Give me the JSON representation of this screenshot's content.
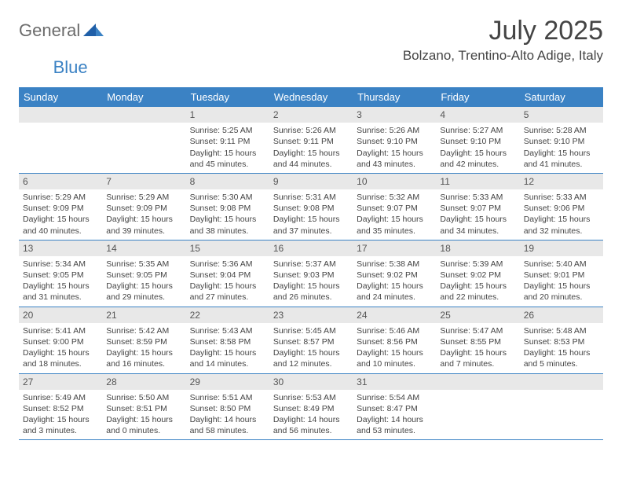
{
  "logo": {
    "part1": "General",
    "part2": "Blue"
  },
  "title": "July 2025",
  "location": "Bolzano, Trentino-Alto Adige, Italy",
  "colors": {
    "header_bg": "#3b82c4",
    "header_text": "#ffffff",
    "daynum_bg": "#e8e8e8",
    "text": "#444444",
    "logo_gray": "#6b6b6b",
    "logo_blue": "#3b82c4",
    "border": "#3b82c4"
  },
  "day_names": [
    "Sunday",
    "Monday",
    "Tuesday",
    "Wednesday",
    "Thursday",
    "Friday",
    "Saturday"
  ],
  "weeks": [
    [
      null,
      null,
      {
        "n": "1",
        "sunrise": "Sunrise: 5:25 AM",
        "sunset": "Sunset: 9:11 PM",
        "daylight": "Daylight: 15 hours and 45 minutes."
      },
      {
        "n": "2",
        "sunrise": "Sunrise: 5:26 AM",
        "sunset": "Sunset: 9:11 PM",
        "daylight": "Daylight: 15 hours and 44 minutes."
      },
      {
        "n": "3",
        "sunrise": "Sunrise: 5:26 AM",
        "sunset": "Sunset: 9:10 PM",
        "daylight": "Daylight: 15 hours and 43 minutes."
      },
      {
        "n": "4",
        "sunrise": "Sunrise: 5:27 AM",
        "sunset": "Sunset: 9:10 PM",
        "daylight": "Daylight: 15 hours and 42 minutes."
      },
      {
        "n": "5",
        "sunrise": "Sunrise: 5:28 AM",
        "sunset": "Sunset: 9:10 PM",
        "daylight": "Daylight: 15 hours and 41 minutes."
      }
    ],
    [
      {
        "n": "6",
        "sunrise": "Sunrise: 5:29 AM",
        "sunset": "Sunset: 9:09 PM",
        "daylight": "Daylight: 15 hours and 40 minutes."
      },
      {
        "n": "7",
        "sunrise": "Sunrise: 5:29 AM",
        "sunset": "Sunset: 9:09 PM",
        "daylight": "Daylight: 15 hours and 39 minutes."
      },
      {
        "n": "8",
        "sunrise": "Sunrise: 5:30 AM",
        "sunset": "Sunset: 9:08 PM",
        "daylight": "Daylight: 15 hours and 38 minutes."
      },
      {
        "n": "9",
        "sunrise": "Sunrise: 5:31 AM",
        "sunset": "Sunset: 9:08 PM",
        "daylight": "Daylight: 15 hours and 37 minutes."
      },
      {
        "n": "10",
        "sunrise": "Sunrise: 5:32 AM",
        "sunset": "Sunset: 9:07 PM",
        "daylight": "Daylight: 15 hours and 35 minutes."
      },
      {
        "n": "11",
        "sunrise": "Sunrise: 5:33 AM",
        "sunset": "Sunset: 9:07 PM",
        "daylight": "Daylight: 15 hours and 34 minutes."
      },
      {
        "n": "12",
        "sunrise": "Sunrise: 5:33 AM",
        "sunset": "Sunset: 9:06 PM",
        "daylight": "Daylight: 15 hours and 32 minutes."
      }
    ],
    [
      {
        "n": "13",
        "sunrise": "Sunrise: 5:34 AM",
        "sunset": "Sunset: 9:05 PM",
        "daylight": "Daylight: 15 hours and 31 minutes."
      },
      {
        "n": "14",
        "sunrise": "Sunrise: 5:35 AM",
        "sunset": "Sunset: 9:05 PM",
        "daylight": "Daylight: 15 hours and 29 minutes."
      },
      {
        "n": "15",
        "sunrise": "Sunrise: 5:36 AM",
        "sunset": "Sunset: 9:04 PM",
        "daylight": "Daylight: 15 hours and 27 minutes."
      },
      {
        "n": "16",
        "sunrise": "Sunrise: 5:37 AM",
        "sunset": "Sunset: 9:03 PM",
        "daylight": "Daylight: 15 hours and 26 minutes."
      },
      {
        "n": "17",
        "sunrise": "Sunrise: 5:38 AM",
        "sunset": "Sunset: 9:02 PM",
        "daylight": "Daylight: 15 hours and 24 minutes."
      },
      {
        "n": "18",
        "sunrise": "Sunrise: 5:39 AM",
        "sunset": "Sunset: 9:02 PM",
        "daylight": "Daylight: 15 hours and 22 minutes."
      },
      {
        "n": "19",
        "sunrise": "Sunrise: 5:40 AM",
        "sunset": "Sunset: 9:01 PM",
        "daylight": "Daylight: 15 hours and 20 minutes."
      }
    ],
    [
      {
        "n": "20",
        "sunrise": "Sunrise: 5:41 AM",
        "sunset": "Sunset: 9:00 PM",
        "daylight": "Daylight: 15 hours and 18 minutes."
      },
      {
        "n": "21",
        "sunrise": "Sunrise: 5:42 AM",
        "sunset": "Sunset: 8:59 PM",
        "daylight": "Daylight: 15 hours and 16 minutes."
      },
      {
        "n": "22",
        "sunrise": "Sunrise: 5:43 AM",
        "sunset": "Sunset: 8:58 PM",
        "daylight": "Daylight: 15 hours and 14 minutes."
      },
      {
        "n": "23",
        "sunrise": "Sunrise: 5:45 AM",
        "sunset": "Sunset: 8:57 PM",
        "daylight": "Daylight: 15 hours and 12 minutes."
      },
      {
        "n": "24",
        "sunrise": "Sunrise: 5:46 AM",
        "sunset": "Sunset: 8:56 PM",
        "daylight": "Daylight: 15 hours and 10 minutes."
      },
      {
        "n": "25",
        "sunrise": "Sunrise: 5:47 AM",
        "sunset": "Sunset: 8:55 PM",
        "daylight": "Daylight: 15 hours and 7 minutes."
      },
      {
        "n": "26",
        "sunrise": "Sunrise: 5:48 AM",
        "sunset": "Sunset: 8:53 PM",
        "daylight": "Daylight: 15 hours and 5 minutes."
      }
    ],
    [
      {
        "n": "27",
        "sunrise": "Sunrise: 5:49 AM",
        "sunset": "Sunset: 8:52 PM",
        "daylight": "Daylight: 15 hours and 3 minutes."
      },
      {
        "n": "28",
        "sunrise": "Sunrise: 5:50 AM",
        "sunset": "Sunset: 8:51 PM",
        "daylight": "Daylight: 15 hours and 0 minutes."
      },
      {
        "n": "29",
        "sunrise": "Sunrise: 5:51 AM",
        "sunset": "Sunset: 8:50 PM",
        "daylight": "Daylight: 14 hours and 58 minutes."
      },
      {
        "n": "30",
        "sunrise": "Sunrise: 5:53 AM",
        "sunset": "Sunset: 8:49 PM",
        "daylight": "Daylight: 14 hours and 56 minutes."
      },
      {
        "n": "31",
        "sunrise": "Sunrise: 5:54 AM",
        "sunset": "Sunset: 8:47 PM",
        "daylight": "Daylight: 14 hours and 53 minutes."
      },
      null,
      null
    ]
  ]
}
